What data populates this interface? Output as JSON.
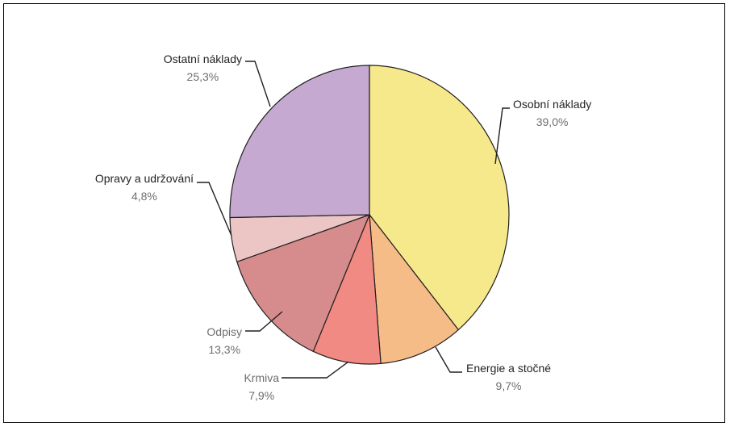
{
  "chart_data": {
    "type": "pie",
    "title": "",
    "slices": [
      {
        "name": "Osobní náklady",
        "value": 39.0,
        "label": "39,0%",
        "color": "#f6e98c"
      },
      {
        "name": "Energie  a stočné",
        "value": 9.7,
        "label": "9,7%",
        "color": "#f6bc88"
      },
      {
        "name": "Krmiva",
        "value": 7.9,
        "label": "7,9%",
        "color": "#f08a82"
      },
      {
        "name": "Odpisy",
        "value": 13.3,
        "label": "13,3%",
        "color": "#d68c8c"
      },
      {
        "name": "Opravy a udržování",
        "value": 4.8,
        "label": "4,8%",
        "color": "#ecc6c4"
      },
      {
        "name": "Ostatní náklady",
        "value": 25.3,
        "label": "25,3%",
        "color": "#c5a9d1"
      }
    ],
    "start_angle_deg": 0,
    "direction": "clockwise",
    "legend": "none"
  }
}
